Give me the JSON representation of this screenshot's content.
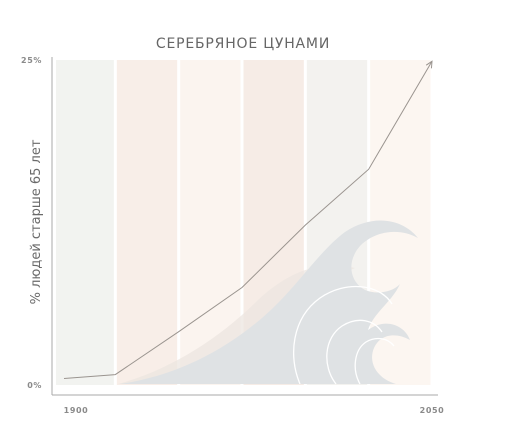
{
  "chart_data": {
    "type": "line",
    "title": "СЕРЕБРЯНОЕ ЦУНАМИ",
    "ylabel": "% людей старше 65 лет",
    "xlabel": "",
    "xlim": [
      1900,
      2050
    ],
    "ylim": [
      0,
      25
    ],
    "x_ticks": [
      "1900",
      "2050"
    ],
    "y_ticks": [
      "0%",
      "25%"
    ],
    "grid": false,
    "series": [
      {
        "x": [
          1900,
          1925,
          1950,
          1975,
          2000,
          2025,
          2050
        ],
        "values": [
          0.5,
          0.8,
          4.1,
          7.5,
          12.3,
          16.6,
          24.9
        ]
      }
    ],
    "bands": [
      {
        "from": 1900,
        "to": 1925,
        "color": "#f2f3f0"
      },
      {
        "from": 1925,
        "to": 1950,
        "color": "#f8eee8"
      },
      {
        "from": 1950,
        "to": 1975,
        "color": "#fbf4ef"
      },
      {
        "from": 1975,
        "to": 2000,
        "color": "#f6ece6"
      },
      {
        "from": 2000,
        "to": 2025,
        "color": "#f3f2ef"
      },
      {
        "from": 2025,
        "to": 2050,
        "color": "#fcf6f1"
      }
    ],
    "colors": {
      "line": "#9a948f",
      "axis": "#aaaaaa",
      "wave": "#dfe2e4",
      "wave_shadow": "#ece6e0",
      "band_divider": "#ffffff"
    }
  }
}
